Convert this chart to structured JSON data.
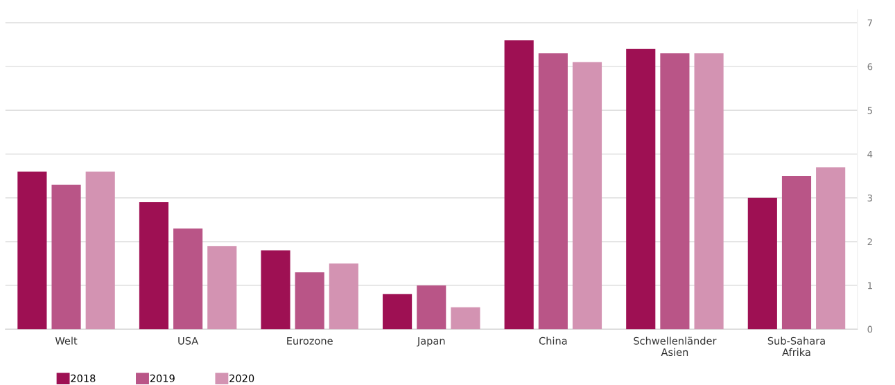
{
  "chart_data": {
    "type": "bar",
    "categories": [
      "Welt",
      "USA",
      "Eurozone",
      "Japan",
      "China",
      "Schwellenländer\nAsien",
      "Sub-Sahara\nAfrika"
    ],
    "series": [
      {
        "name": "2018",
        "color": "#9e1053",
        "values": [
          3.6,
          2.9,
          1.8,
          0.8,
          6.6,
          6.4,
          3.0
        ]
      },
      {
        "name": "2019",
        "color": "#b95587",
        "values": [
          3.3,
          2.3,
          1.3,
          1.0,
          6.3,
          6.3,
          3.5
        ]
      },
      {
        "name": "2020",
        "color": "#d393b2",
        "values": [
          3.6,
          1.9,
          1.5,
          0.5,
          6.1,
          6.3,
          3.7
        ]
      }
    ],
    "ylim": [
      0,
      7.3
    ],
    "yticks": [
      0,
      1,
      2,
      3,
      4,
      5,
      6,
      7
    ],
    "grid": "y",
    "legend": "bottom left"
  }
}
